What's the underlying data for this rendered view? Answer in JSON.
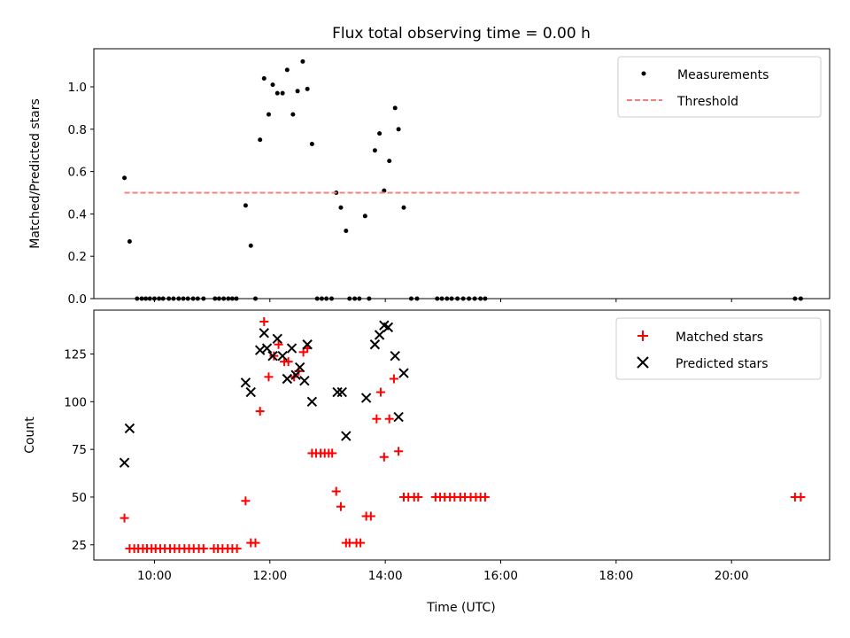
{
  "chart_data": [
    {
      "type": "scatter",
      "title": "Flux total observing time = 0.00 h",
      "xlabel": "",
      "ylabel": "Matched/Predicted stars",
      "xlim": [
        8.95,
        21.7
      ],
      "ylim": [
        0.0,
        1.18
      ],
      "xticks": [
        10,
        12,
        14,
        16,
        18,
        20
      ],
      "xtick_labels": [],
      "yticks": [
        0.0,
        0.2,
        0.4,
        0.6,
        0.8,
        1.0
      ],
      "ytick_labels": [
        "0.0",
        "0.2",
        "0.4",
        "0.6",
        "0.8",
        "1.0"
      ],
      "grid": false,
      "legend_position": "top-right",
      "series": [
        {
          "name": "Measurements",
          "kind": "scatter",
          "marker": "dot",
          "color": "#000000",
          "points": [
            [
              9.48,
              0.57
            ],
            [
              9.57,
              0.27
            ],
            [
              9.7,
              0.0
            ],
            [
              9.78,
              0.0
            ],
            [
              9.85,
              0.0
            ],
            [
              9.92,
              0.0
            ],
            [
              10.0,
              0.0
            ],
            [
              10.08,
              0.0
            ],
            [
              10.15,
              0.0
            ],
            [
              10.25,
              0.0
            ],
            [
              10.33,
              0.0
            ],
            [
              10.42,
              0.0
            ],
            [
              10.5,
              0.0
            ],
            [
              10.58,
              0.0
            ],
            [
              10.67,
              0.0
            ],
            [
              10.75,
              0.0
            ],
            [
              10.85,
              0.0
            ],
            [
              11.05,
              0.0
            ],
            [
              11.12,
              0.0
            ],
            [
              11.2,
              0.0
            ],
            [
              11.28,
              0.0
            ],
            [
              11.35,
              0.0
            ],
            [
              11.42,
              0.0
            ],
            [
              11.58,
              0.44
            ],
            [
              11.67,
              0.25
            ],
            [
              11.75,
              0.0
            ],
            [
              11.83,
              0.75
            ],
            [
              11.9,
              1.04
            ],
            [
              11.98,
              0.87
            ],
            [
              12.05,
              1.01
            ],
            [
              12.13,
              0.97
            ],
            [
              12.22,
              0.97
            ],
            [
              12.3,
              1.08
            ],
            [
              12.4,
              0.87
            ],
            [
              12.48,
              0.98
            ],
            [
              12.57,
              1.12
            ],
            [
              12.65,
              0.99
            ],
            [
              12.73,
              0.73
            ],
            [
              12.82,
              0.0
            ],
            [
              12.9,
              0.0
            ],
            [
              12.98,
              0.0
            ],
            [
              13.07,
              0.0
            ],
            [
              13.15,
              0.5
            ],
            [
              13.23,
              0.43
            ],
            [
              13.32,
              0.32
            ],
            [
              13.38,
              0.0
            ],
            [
              13.47,
              0.0
            ],
            [
              13.55,
              0.0
            ],
            [
              13.65,
              0.39
            ],
            [
              13.72,
              0.0
            ],
            [
              13.82,
              0.7
            ],
            [
              13.9,
              0.78
            ],
            [
              13.98,
              0.51
            ],
            [
              14.07,
              0.65
            ],
            [
              14.17,
              0.9
            ],
            [
              14.23,
              0.8
            ],
            [
              14.32,
              0.43
            ],
            [
              14.45,
              0.0
            ],
            [
              14.55,
              0.0
            ],
            [
              14.9,
              0.0
            ],
            [
              14.98,
              0.0
            ],
            [
              15.07,
              0.0
            ],
            [
              15.15,
              0.0
            ],
            [
              15.25,
              0.0
            ],
            [
              15.35,
              0.0
            ],
            [
              15.45,
              0.0
            ],
            [
              15.55,
              0.0
            ],
            [
              15.65,
              0.0
            ],
            [
              15.73,
              0.0
            ],
            [
              21.1,
              0.0
            ],
            [
              21.2,
              0.0
            ]
          ]
        },
        {
          "name": "Threshold",
          "kind": "line",
          "dash": "dashed",
          "color": "#f08080",
          "points": [
            [
              9.48,
              0.5
            ],
            [
              21.2,
              0.5
            ]
          ]
        }
      ]
    },
    {
      "type": "scatter",
      "title": "",
      "xlabel": "Time (UTC)",
      "ylabel": "Count",
      "xlim": [
        8.95,
        21.7
      ],
      "ylim": [
        17,
        148
      ],
      "xticks": [
        10,
        12,
        14,
        16,
        18,
        20
      ],
      "xtick_labels": [
        "10:00",
        "12:00",
        "14:00",
        "16:00",
        "18:00",
        "20:00"
      ],
      "yticks": [
        25,
        50,
        75,
        100,
        125
      ],
      "ytick_labels": [
        "25",
        "50",
        "75",
        "100",
        "125"
      ],
      "grid": false,
      "legend_position": "top-right",
      "series": [
        {
          "name": "Matched stars",
          "kind": "scatter",
          "marker": "plus",
          "color": "#ff0000",
          "points": [
            [
              9.48,
              39
            ],
            [
              9.57,
              23
            ],
            [
              9.65,
              23
            ],
            [
              9.72,
              23
            ],
            [
              9.8,
              23
            ],
            [
              9.87,
              23
            ],
            [
              9.95,
              23
            ],
            [
              10.02,
              23
            ],
            [
              10.1,
              23
            ],
            [
              10.18,
              23
            ],
            [
              10.27,
              23
            ],
            [
              10.35,
              23
            ],
            [
              10.43,
              23
            ],
            [
              10.52,
              23
            ],
            [
              10.6,
              23
            ],
            [
              10.68,
              23
            ],
            [
              10.77,
              23
            ],
            [
              10.85,
              23
            ],
            [
              11.03,
              23
            ],
            [
              11.1,
              23
            ],
            [
              11.18,
              23
            ],
            [
              11.27,
              23
            ],
            [
              11.35,
              23
            ],
            [
              11.43,
              23
            ],
            [
              11.58,
              48
            ],
            [
              11.67,
              26
            ],
            [
              11.75,
              26
            ],
            [
              11.83,
              95
            ],
            [
              11.9,
              142
            ],
            [
              11.98,
              113
            ],
            [
              12.07,
              124
            ],
            [
              12.15,
              130
            ],
            [
              12.25,
              121
            ],
            [
              12.32,
              121
            ],
            [
              12.42,
              113
            ],
            [
              12.5,
              116
            ],
            [
              12.58,
              126
            ],
            [
              12.65,
              128
            ],
            [
              12.73,
              73
            ],
            [
              12.8,
              73
            ],
            [
              12.88,
              73
            ],
            [
              12.95,
              73
            ],
            [
              13.02,
              73
            ],
            [
              13.08,
              73
            ],
            [
              13.15,
              53
            ],
            [
              13.23,
              45
            ],
            [
              13.32,
              26
            ],
            [
              13.38,
              26
            ],
            [
              13.5,
              26
            ],
            [
              13.57,
              26
            ],
            [
              13.67,
              40
            ],
            [
              13.75,
              40
            ],
            [
              13.85,
              91
            ],
            [
              13.92,
              105
            ],
            [
              13.98,
              71
            ],
            [
              14.07,
              91
            ],
            [
              14.15,
              112
            ],
            [
              14.23,
              74
            ],
            [
              14.32,
              50
            ],
            [
              14.4,
              50
            ],
            [
              14.5,
              50
            ],
            [
              14.57,
              50
            ],
            [
              14.87,
              50
            ],
            [
              14.95,
              50
            ],
            [
              15.03,
              50
            ],
            [
              15.12,
              50
            ],
            [
              15.2,
              50
            ],
            [
              15.3,
              50
            ],
            [
              15.38,
              50
            ],
            [
              15.48,
              50
            ],
            [
              15.57,
              50
            ],
            [
              15.65,
              50
            ],
            [
              15.73,
              50
            ],
            [
              21.1,
              50
            ],
            [
              21.2,
              50
            ]
          ]
        },
        {
          "name": "Predicted stars",
          "kind": "scatter",
          "marker": "x",
          "color": "#000000",
          "points": [
            [
              9.48,
              68
            ],
            [
              9.57,
              86
            ],
            [
              11.58,
              110
            ],
            [
              11.67,
              105
            ],
            [
              11.83,
              127
            ],
            [
              11.9,
              136
            ],
            [
              11.95,
              128
            ],
            [
              12.05,
              124
            ],
            [
              12.13,
              133
            ],
            [
              12.22,
              124
            ],
            [
              12.3,
              112
            ],
            [
              12.38,
              128
            ],
            [
              12.45,
              114
            ],
            [
              12.52,
              118
            ],
            [
              12.6,
              111
            ],
            [
              12.65,
              130
            ],
            [
              12.73,
              100
            ],
            [
              13.17,
              105
            ],
            [
              13.25,
              105
            ],
            [
              13.32,
              82
            ],
            [
              13.67,
              102
            ],
            [
              13.82,
              130
            ],
            [
              13.9,
              135
            ],
            [
              13.98,
              140
            ],
            [
              14.05,
              139
            ],
            [
              14.17,
              124
            ],
            [
              14.23,
              92
            ],
            [
              14.32,
              115
            ]
          ]
        }
      ]
    }
  ]
}
